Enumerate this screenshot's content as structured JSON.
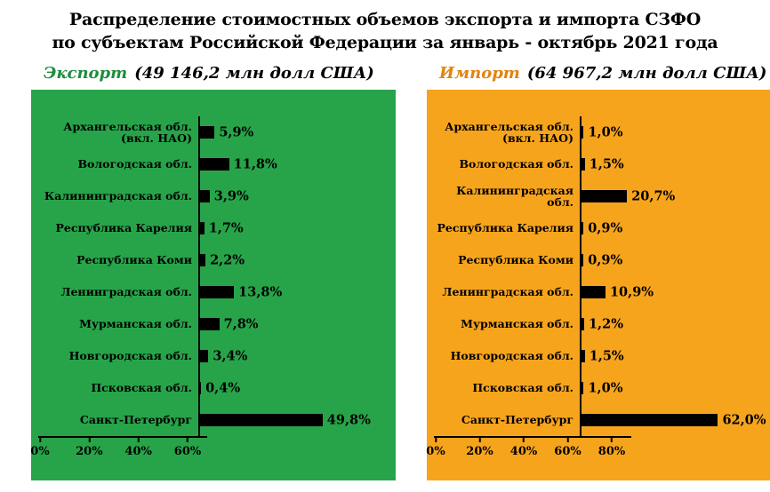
{
  "title": {
    "line1": "Распределение стоимостных объемов экспорта и импорта СЗФО",
    "line2": "по субъектам Российской Федерации за январь - октябрь 2021 года"
  },
  "colors": {
    "export_panel_green": "#27A449",
    "import_panel_orange": "#F7A41D",
    "export_label_green": "#1B8E3C",
    "import_label_orange": "#E2830F",
    "bar_black": "#000000"
  },
  "chart_data": [
    {
      "type": "bar",
      "orientation": "horizontal",
      "title_label": "Экспорт",
      "title_value": "(49 146,2 млн долл США)",
      "panel_color": "#27A449",
      "label_color": "#1B8E3C",
      "bar_color": "#000000",
      "categories": [
        "Архангельская обл. (вкл. НАО)",
        "Вологодская обл.",
        "Калининградская обл.",
        "Республика Карелия",
        "Республика Коми",
        "Ленинградская обл.",
        "Мурманская обл.",
        "Новгородская обл.",
        "Псковская обл.",
        "Санкт-Петербург"
      ],
      "values": [
        5.9,
        11.8,
        3.9,
        1.7,
        2.2,
        13.8,
        7.8,
        3.4,
        0.4,
        49.8
      ],
      "value_labels": [
        "5,9%",
        "11,8%",
        "3,9%",
        "1,7%",
        "2,2%",
        "13,8%",
        "7,8%",
        "3,4%",
        "0,4%",
        "49,8%"
      ],
      "x_ticks": [
        "0%",
        "20%",
        "40%",
        "60%"
      ],
      "xlim": [
        0,
        60
      ],
      "grid": false,
      "legend": "none"
    },
    {
      "type": "bar",
      "orientation": "horizontal",
      "title_label": "Импорт",
      "title_value": "(64 967,2 млн долл США)",
      "panel_color": "#F7A41D",
      "label_color": "#E2830F",
      "bar_color": "#000000",
      "categories": [
        "Архангельская обл. (вкл. НАО)",
        "Вологодская обл.",
        "Калининградская обл.",
        "Республика Карелия",
        "Республика Коми",
        "Ленинградская обл.",
        "Мурманская обл.",
        "Новгородская обл.",
        "Псковская обл.",
        "Санкт-Петербург"
      ],
      "values": [
        1.0,
        1.5,
        20.7,
        0.9,
        0.9,
        10.9,
        1.2,
        1.5,
        1.0,
        62.0
      ],
      "value_labels": [
        "1,0%",
        "1,5%",
        "20,7%",
        "0,9%",
        "0,9%",
        "10,9%",
        "1,2%",
        "1,5%",
        "1,0%",
        "62,0%"
      ],
      "x_ticks": [
        "0%",
        "20%",
        "40%",
        "60%",
        "80%"
      ],
      "xlim": [
        0,
        80
      ],
      "grid": false,
      "legend": "none"
    }
  ]
}
